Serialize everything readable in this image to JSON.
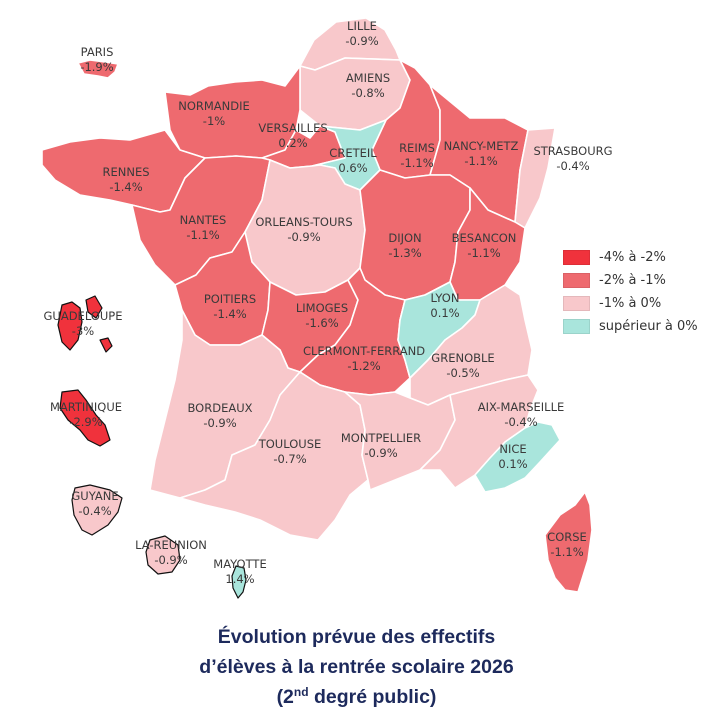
{
  "colors": {
    "class_1": "#f0323c",
    "class_2": "#ee6a6f",
    "class_3": "#f8c8cb",
    "class_4": "#a9e5dc",
    "caption": "#1d2a5c"
  },
  "legend": [
    {
      "label": "-4% à -2%",
      "color": "#f0323c"
    },
    {
      "label": "-2% à -1%",
      "color": "#ee6a6f"
    },
    {
      "label": "-1% à 0%",
      "color": "#f8c8cb"
    },
    {
      "label": "supérieur à 0%",
      "color": "#a9e5dc"
    }
  ],
  "regions": [
    {
      "name": "LILLE",
      "value": "-0.9%"
    },
    {
      "name": "AMIENS",
      "value": "-0.8%"
    },
    {
      "name": "NORMANDIE",
      "value": "-1%"
    },
    {
      "name": "VERSAILLES",
      "value": "0.2%"
    },
    {
      "name": "CRETEIL",
      "value": "0.6%"
    },
    {
      "name": "REIMS",
      "value": "-1.1%"
    },
    {
      "name": "NANCY-METZ",
      "value": "-1.1%"
    },
    {
      "name": "STRASBOURG",
      "value": "-0.4%"
    },
    {
      "name": "RENNES",
      "value": "-1.4%"
    },
    {
      "name": "NANTES",
      "value": "-1.1%"
    },
    {
      "name": "ORLEANS-TOURS",
      "value": "-0.9%"
    },
    {
      "name": "DIJON",
      "value": "-1.3%"
    },
    {
      "name": "BESANCON",
      "value": "-1.1%"
    },
    {
      "name": "POITIERS",
      "value": "-1.4%"
    },
    {
      "name": "LIMOGES",
      "value": "-1.6%"
    },
    {
      "name": "CLERMONT-FERRAND",
      "value": "-1.2%"
    },
    {
      "name": "LYON",
      "value": "0.1%"
    },
    {
      "name": "GRENOBLE",
      "value": "-0.5%"
    },
    {
      "name": "BORDEAUX",
      "value": "-0.9%"
    },
    {
      "name": "TOULOUSE",
      "value": "-0.7%"
    },
    {
      "name": "MONTPELLIER",
      "value": "-0.9%"
    },
    {
      "name": "AIX-MARSEILLE",
      "value": "-0.4%"
    },
    {
      "name": "NICE",
      "value": "0.1%"
    },
    {
      "name": "CORSE",
      "value": "-1.1%"
    },
    {
      "name": "PARIS",
      "value": "-1.9%"
    },
    {
      "name": "GUADELOUPE",
      "value": "-3%"
    },
    {
      "name": "MARTINIQUE",
      "value": "-2.9%"
    },
    {
      "name": "GUYANE",
      "value": "-0.4%"
    },
    {
      "name": "LA REUNION",
      "value": "-0.9%"
    },
    {
      "name": "MAYOTTE",
      "value": "1.4%"
    }
  ],
  "caption": {
    "line1": "Évolution prévue des effectifs",
    "line2": "d’élèves à la rentrée scolaire 2026",
    "line3_open": "(2",
    "line3_sup": "nd",
    "line3_rest": " degré public)"
  }
}
